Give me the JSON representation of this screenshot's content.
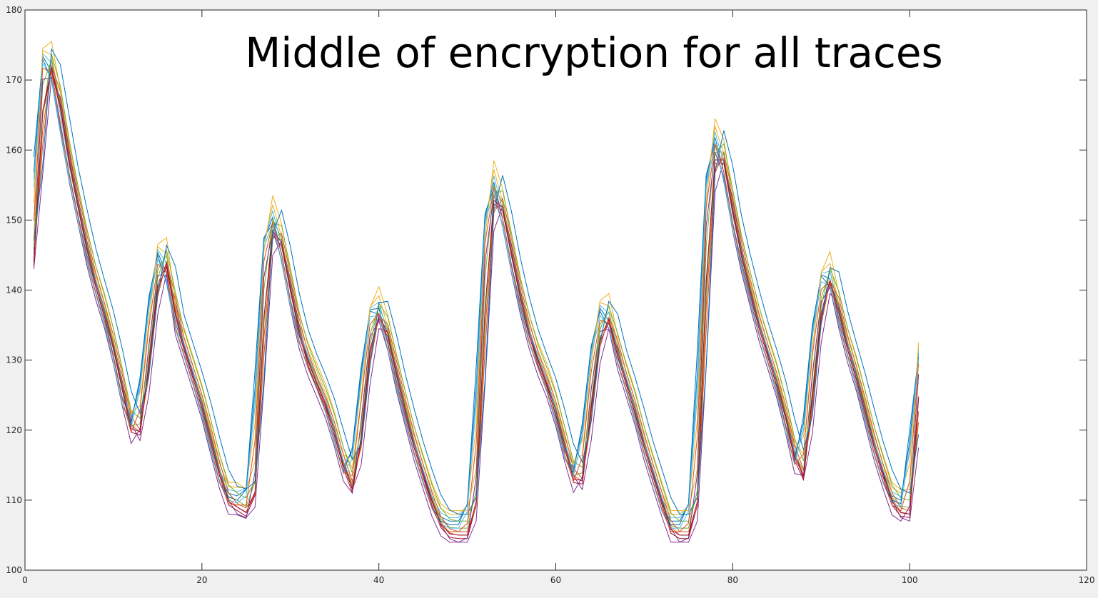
{
  "chart_data": {
    "type": "line",
    "title": "Middle of encryption for all traces",
    "xlabel": "",
    "ylabel": "",
    "xlim": [
      0,
      120
    ],
    "ylim": [
      100,
      180
    ],
    "x_ticks": [
      0,
      20,
      40,
      60,
      80,
      100,
      120
    ],
    "y_ticks": [
      100,
      110,
      120,
      130,
      140,
      150,
      160,
      170,
      180
    ],
    "grid": false,
    "legend": "none",
    "series_count": 16,
    "x": [
      1,
      2,
      3,
      4,
      5,
      6,
      7,
      8,
      9,
      10,
      11,
      12,
      13,
      14,
      15,
      16,
      17,
      18,
      19,
      20,
      21,
      22,
      23,
      24,
      25,
      26,
      27,
      28,
      29,
      30,
      31,
      32,
      33,
      34,
      35,
      36,
      37,
      38,
      39,
      40,
      41,
      42,
      43,
      44,
      45,
      46,
      47,
      48,
      49,
      50,
      51,
      52,
      53,
      54,
      55,
      56,
      57,
      58,
      59,
      60,
      61,
      62,
      63,
      64,
      65,
      66,
      67,
      68,
      69,
      70,
      71,
      72,
      73,
      74,
      75,
      76,
      77,
      78,
      79,
      80,
      81,
      82,
      83,
      84,
      85,
      86,
      87,
      88,
      89,
      90,
      91,
      92,
      93,
      94,
      95,
      96,
      97,
      98,
      99,
      100,
      101
    ],
    "base_trace": [
      145,
      172,
      173,
      166,
      158,
      152,
      146,
      141,
      137,
      132,
      126,
      120,
      121,
      133,
      144,
      145,
      136,
      132,
      128,
      124,
      119,
      114,
      110,
      110,
      109,
      113,
      143,
      151,
      147,
      140,
      134,
      130,
      127,
      124,
      120,
      115,
      112,
      122,
      135,
      138,
      134,
      128,
      123,
      118,
      114,
      110,
      107,
      106,
      106,
      106,
      112,
      145,
      156,
      152,
      145,
      139,
      134,
      130,
      127,
      123,
      118,
      113,
      114,
      127,
      136,
      137,
      131,
      127,
      123,
      118,
      114,
      110,
      106,
      106,
      106,
      112,
      150,
      162,
      159,
      151,
      145,
      140,
      135,
      131,
      127,
      122,
      116,
      114,
      129,
      140,
      143,
      137,
      132,
      128,
      123,
      118,
      114,
      110,
      109,
      109,
      130
    ],
    "series_colors": [
      "#0072bd",
      "#d95319",
      "#edb120",
      "#7e2f8e",
      "#77ac30",
      "#4dbeee",
      "#a2142f",
      "#0072bd",
      "#d95319",
      "#edb120",
      "#7e2f8e",
      "#77ac30",
      "#4dbeee",
      "#a2142f",
      "#0072bd",
      "#d95319"
    ],
    "series_shift": [
      -0.4,
      0.3,
      -0.2,
      0.5,
      0.1,
      -0.3,
      0.2,
      -0.5,
      0.4,
      0,
      -0.1,
      0.3,
      -0.4,
      0.2,
      0.6,
      -0.2
    ],
    "series_offset": [
      1,
      -1,
      2,
      -2,
      0,
      1.5,
      -1.5,
      0.5,
      -0.5,
      2.5,
      -2,
      1,
      0,
      -1,
      2,
      -0.5
    ]
  }
}
